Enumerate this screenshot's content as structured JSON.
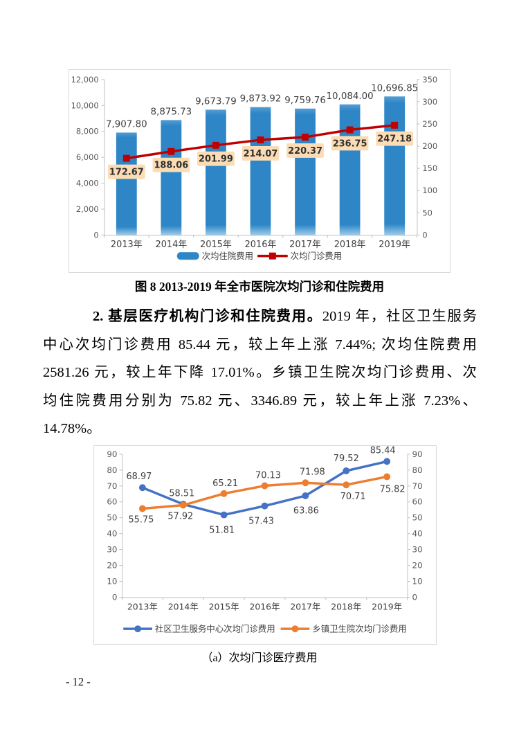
{
  "page": {
    "number": "- 12 -"
  },
  "figure8": {
    "caption": "图 8  2013-2019 年全市医院次均门诊和住院费用"
  },
  "figure_a": {
    "caption": "（a）次均门诊医疗费用"
  },
  "paragraph": {
    "lines": [
      {
        "bold": "2. 基层医疗机构门诊和住院费用。",
        "text": "2019 年，社区卫生服务"
      },
      {
        "bold": "",
        "text": "中心次均门诊费用 85.44 元，较上年上涨 7.44%; 次均住院费用"
      },
      {
        "bold": "",
        "text": "2581.26 元，较上年下降 17.01%。乡镇卫生院次均门诊费用、次"
      },
      {
        "bold": "",
        "text": "均住院费用分别为 75.82 元、3346.89 元，较上年上涨 7.23%、"
      },
      {
        "bold": "",
        "text": "14.78%。"
      }
    ]
  },
  "chart_data": [
    {
      "type": "bar",
      "subtype": "bar+line combo, dual axis",
      "categories": [
        "2013年",
        "2014年",
        "2015年",
        "2016年",
        "2017年",
        "2018年",
        "2019年"
      ],
      "series": [
        {
          "name": "次均住院费用",
          "kind": "bar",
          "axis": "left",
          "color": "#2E86C6",
          "values": [
            7907.8,
            8875.73,
            9673.79,
            9873.92,
            9759.76,
            10084.0,
            10696.85
          ],
          "labels": [
            "7,907.80",
            "8,875.73",
            "9,673.79",
            "9,873.92",
            "9,759.76",
            "10,084.00",
            "10,696.85"
          ]
        },
        {
          "name": "次均门诊费用",
          "kind": "line",
          "axis": "right",
          "color": "#C00000",
          "marker": "square",
          "label_bg": "#FBDCB4",
          "values": [
            172.67,
            188.06,
            201.99,
            214.07,
            220.37,
            236.75,
            247.18
          ],
          "labels": [
            "172.67",
            "188.06",
            "201.99",
            "214.07",
            "220.37",
            "236.75",
            "247.18"
          ]
        }
      ],
      "left_axis": {
        "min": 0,
        "max": 12000,
        "step": 2000,
        "ticks": [
          "0",
          "2,000",
          "4,000",
          "6,000",
          "8,000",
          "10,000",
          "12,000"
        ]
      },
      "right_axis": {
        "min": 0,
        "max": 350,
        "step": 50,
        "ticks": [
          "0",
          "50",
          "100",
          "150",
          "200",
          "250",
          "300",
          "350"
        ]
      },
      "grid": false,
      "legend_position": "bottom",
      "title": ""
    },
    {
      "type": "line",
      "categories": [
        "2013年",
        "2014年",
        "2015年",
        "2016年",
        "2017年",
        "2018年",
        "2019年"
      ],
      "series": [
        {
          "name": "社区卫生服务中心次均门诊费用",
          "color": "#4472C4",
          "marker": "circle",
          "values": [
            68.97,
            58.51,
            51.81,
            57.43,
            63.86,
            79.52,
            85.44
          ],
          "labels": [
            "68.97",
            "58.51",
            "51.81",
            "57.43",
            "63.86",
            "79.52",
            "85.44"
          ]
        },
        {
          "name": "乡镇卫生院次均门诊费用",
          "color": "#ED7D31",
          "marker": "circle",
          "values": [
            55.75,
            57.92,
            65.21,
            70.13,
            71.98,
            70.71,
            75.82
          ],
          "labels": [
            "55.75",
            "57.92",
            "65.21",
            "70.13",
            "71.98",
            "70.71",
            "75.82"
          ]
        }
      ],
      "left_axis": {
        "min": 0,
        "max": 90,
        "step": 10,
        "ticks": [
          "0",
          "10",
          "20",
          "30",
          "40",
          "50",
          "60",
          "70",
          "80",
          "90"
        ]
      },
      "right_axis": {
        "min": 0,
        "max": 90,
        "step": 10,
        "ticks": [
          "0",
          "10",
          "20",
          "30",
          "40",
          "50",
          "60",
          "70",
          "80",
          "90"
        ]
      },
      "grid": false,
      "legend_position": "bottom",
      "title": ""
    }
  ]
}
